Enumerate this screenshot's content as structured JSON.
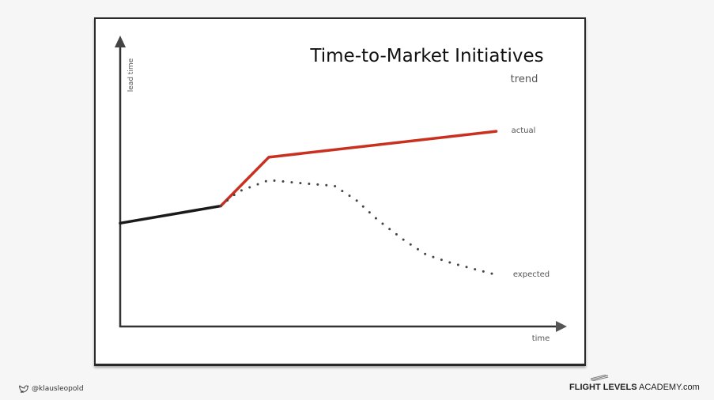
{
  "chart_data": {
    "type": "line",
    "title": "Time-to-Market Initiatives",
    "legend_title": "trend",
    "xlabel": "time",
    "ylabel": "lead time",
    "xlim": [
      0,
      10
    ],
    "ylim": [
      0,
      10
    ],
    "grid": false,
    "axis_ticks": false,
    "series": [
      {
        "name": "",
        "color": "#1a1a1a",
        "style": "solid",
        "x": [
          0.0,
          2.3
        ],
        "y": [
          3.6,
          4.2
        ]
      },
      {
        "name": "actual",
        "color": "#c9301f",
        "style": "solid",
        "x": [
          2.3,
          3.4,
          8.6
        ],
        "y": [
          4.2,
          5.9,
          6.8
        ]
      },
      {
        "name": "expected",
        "color": "#444444",
        "style": "dotted",
        "x": [
          2.3,
          2.7,
          3.4,
          4.1,
          4.9,
          5.4,
          5.9,
          6.5,
          7.0,
          7.6,
          8.6
        ],
        "y": [
          4.2,
          4.7,
          5.1,
          5.0,
          4.9,
          4.4,
          3.7,
          3.0,
          2.5,
          2.2,
          1.8
        ]
      }
    ]
  },
  "footer": {
    "twitter_icon": "twitter-bird-icon",
    "handle": "@klausleopold",
    "brand_bold": "FLIGHT LEVELS",
    "brand_rest": " ACADEMY.com"
  }
}
